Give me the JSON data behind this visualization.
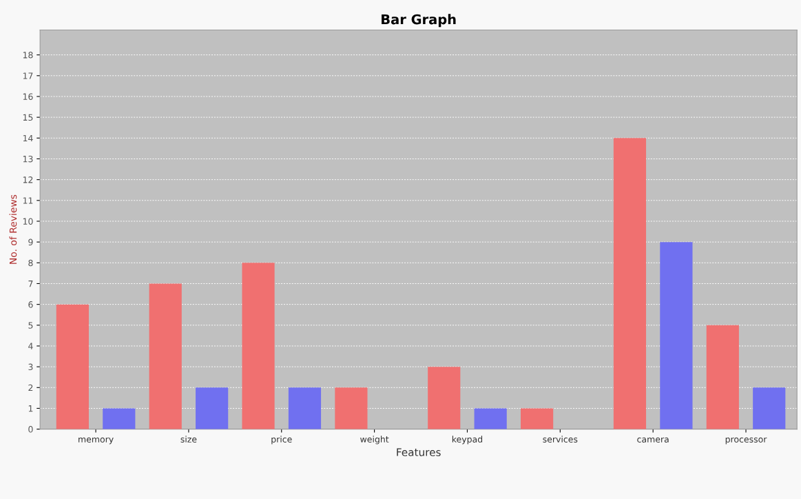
{
  "chart_data": {
    "type": "bar",
    "title": "Bar Graph",
    "xlabel": "Features",
    "ylabel": "No. of Reviews",
    "categories": [
      "memory",
      "size",
      "price",
      "weight",
      "keypad",
      "services",
      "camera",
      "processor"
    ],
    "series": [
      {
        "color": "#f07070",
        "values": [
          6,
          7,
          8,
          2,
          3,
          1,
          14,
          5
        ]
      },
      {
        "color": "#7070f0",
        "values": [
          1,
          2,
          2,
          0,
          1,
          0,
          9,
          2
        ]
      }
    ],
    "ylim": [
      0,
      19.2
    ],
    "yticks": [
      0,
      1,
      2,
      3,
      4,
      5,
      6,
      7,
      8,
      9,
      10,
      11,
      12,
      13,
      14,
      15,
      16,
      17,
      18
    ],
    "grid": "y"
  }
}
